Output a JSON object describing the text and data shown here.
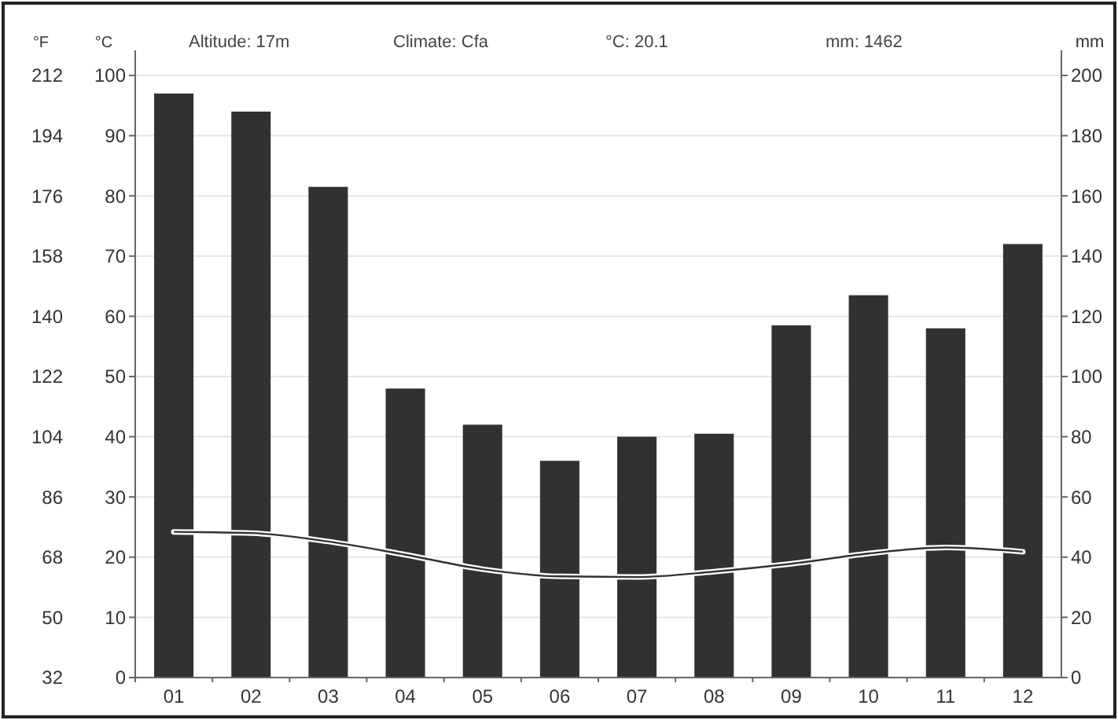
{
  "chart_data": {
    "type": "bar",
    "categories": [
      "01",
      "02",
      "03",
      "04",
      "05",
      "06",
      "07",
      "08",
      "09",
      "10",
      "11",
      "12"
    ],
    "series": [
      {
        "axis": "y2",
        "color": "#333034",
        "values": [
          194,
          188,
          163,
          96,
          84,
          72,
          80,
          81,
          117,
          127,
          116,
          144
        ]
      },
      {
        "type": "line",
        "color": "#333333",
        "values": [
          24.2,
          24.0,
          22.6,
          20.4,
          18.0,
          16.8,
          16.7,
          17.6,
          18.9,
          20.6,
          21.6,
          20.9
        ]
      }
    ],
    "ylabel": "°C",
    "y2label": "mm",
    "y3label": "°F",
    "ylim": [
      0,
      100
    ],
    "yticks": [
      0,
      10,
      20,
      30,
      40,
      50,
      60,
      70,
      80,
      90,
      100
    ],
    "y2lim": [
      0,
      200
    ],
    "y2ticks": [
      0,
      20,
      40,
      60,
      80,
      100,
      120,
      140,
      160,
      180,
      200
    ],
    "y3lim": [
      32,
      212
    ],
    "y3ticks": [
      32,
      50,
      68,
      86,
      104,
      122,
      140,
      158,
      176,
      194,
      212
    ],
    "annotations": [
      "Altitude: 17m",
      "Climate: Cfa",
      "°C: 20.1",
      "mm: 1462"
    ],
    "grid": "y",
    "line_style": "solid"
  }
}
